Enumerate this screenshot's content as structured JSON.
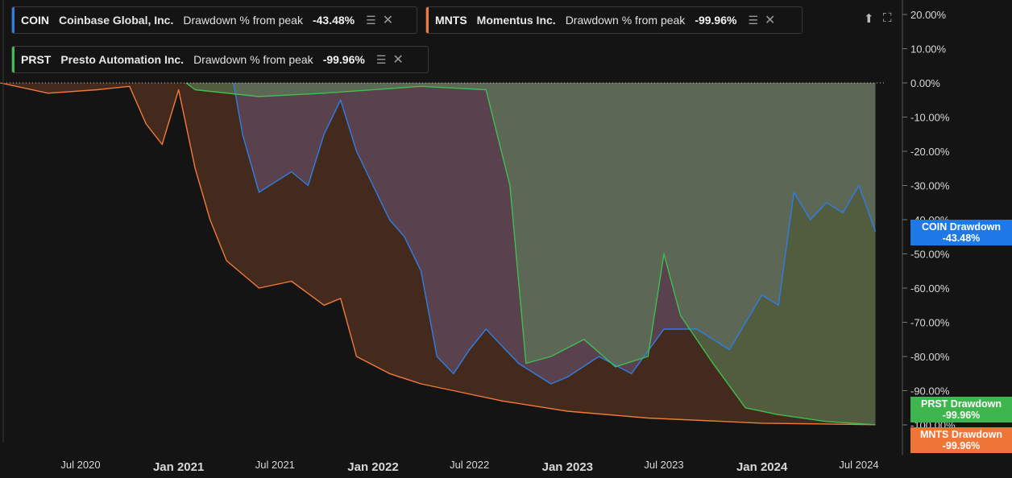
{
  "legend": [
    {
      "symbol": "COIN",
      "name": "Coinbase Global, Inc.",
      "metric": "Drawdown % from peak",
      "value": "-43.48%",
      "color": "#2f7ee6"
    },
    {
      "symbol": "MNTS",
      "name": "Momentus Inc.",
      "metric": "Drawdown % from peak",
      "value": "-99.96%",
      "color": "#f07a3a"
    },
    {
      "symbol": "PRST",
      "name": "Presto Automation Inc.",
      "metric": "Drawdown % from peak",
      "value": "-99.96%",
      "color": "#3fbf4f"
    }
  ],
  "tags": {
    "coin": {
      "title": "COIN Drawdown",
      "value": "-43.48%",
      "color": "#1e78e6"
    },
    "prst": {
      "title": "PRST Drawdown",
      "value": "-99.96%",
      "color": "#3fb54d"
    },
    "mnts": {
      "title": "MNTS Drawdown",
      "value": "-99.96%",
      "color": "#ef7438"
    }
  },
  "chart_data": {
    "type": "area",
    "y_ticks": [
      "20.00%",
      "10.00%",
      "0.00%",
      "-10.00%",
      "-20.00%",
      "-30.00%",
      "-40.00%",
      "-50.00%",
      "-60.00%",
      "-70.00%",
      "-80.00%",
      "-90.00%",
      "-100.00%"
    ],
    "ylim": [
      -100,
      20
    ],
    "x_ticks": [
      {
        "label": "Jul 2020",
        "date": "2020-07-01",
        "major": false
      },
      {
        "label": "Jan 2021",
        "date": "2021-01-01",
        "major": true
      },
      {
        "label": "Jul 2021",
        "date": "2021-07-01",
        "major": false
      },
      {
        "label": "Jan 2022",
        "date": "2022-01-01",
        "major": true
      },
      {
        "label": "Jul 2022",
        "date": "2022-07-01",
        "major": false
      },
      {
        "label": "Jan 2023",
        "date": "2023-01-01",
        "major": true
      },
      {
        "label": "Jul 2023",
        "date": "2023-07-01",
        "major": false
      },
      {
        "label": "Jan 2024",
        "date": "2024-01-01",
        "major": true
      },
      {
        "label": "Jul 2024",
        "date": "2024-07-01",
        "major": false
      }
    ],
    "series": [
      {
        "name": "MNTS",
        "color": "#f07a3a",
        "fill": "rgba(240,122,58,0.22)",
        "points": [
          [
            "2020-02-01",
            0
          ],
          [
            "2020-05-01",
            -3
          ],
          [
            "2020-08-01",
            -2
          ],
          [
            "2020-10-01",
            -1
          ],
          [
            "2020-11-01",
            -12
          ],
          [
            "2020-12-01",
            -18
          ],
          [
            "2021-01-01",
            -2
          ],
          [
            "2021-02-01",
            -25
          ],
          [
            "2021-03-01",
            -40
          ],
          [
            "2021-04-01",
            -52
          ],
          [
            "2021-06-01",
            -60
          ],
          [
            "2021-08-01",
            -58
          ],
          [
            "2021-10-01",
            -65
          ],
          [
            "2021-11-01",
            -63
          ],
          [
            "2021-12-01",
            -80
          ],
          [
            "2022-02-01",
            -85
          ],
          [
            "2022-04-01",
            -88
          ],
          [
            "2022-06-01",
            -90
          ],
          [
            "2022-09-01",
            -93
          ],
          [
            "2023-01-01",
            -96
          ],
          [
            "2023-06-01",
            -98
          ],
          [
            "2024-01-01",
            -99.5
          ],
          [
            "2024-08-01",
            -99.96
          ]
        ]
      },
      {
        "name": "COIN",
        "color": "#2f7ee6",
        "fill": "rgba(128,110,170,0.35)",
        "points": [
          [
            "2021-04-14",
            0
          ],
          [
            "2021-05-01",
            -15
          ],
          [
            "2021-06-01",
            -32
          ],
          [
            "2021-07-01",
            -29
          ],
          [
            "2021-08-01",
            -26
          ],
          [
            "2021-09-01",
            -30
          ],
          [
            "2021-10-01",
            -15
          ],
          [
            "2021-11-01",
            -5
          ],
          [
            "2021-12-01",
            -20
          ],
          [
            "2022-01-01",
            -30
          ],
          [
            "2022-02-01",
            -40
          ],
          [
            "2022-03-01",
            -45
          ],
          [
            "2022-04-01",
            -55
          ],
          [
            "2022-05-01",
            -80
          ],
          [
            "2022-06-01",
            -85
          ],
          [
            "2022-07-01",
            -78
          ],
          [
            "2022-08-01",
            -72
          ],
          [
            "2022-10-01",
            -82
          ],
          [
            "2022-12-01",
            -88
          ],
          [
            "2023-01-01",
            -86
          ],
          [
            "2023-03-01",
            -80
          ],
          [
            "2023-05-01",
            -85
          ],
          [
            "2023-07-01",
            -72
          ],
          [
            "2023-09-01",
            -72
          ],
          [
            "2023-11-01",
            -78
          ],
          [
            "2024-01-01",
            -62
          ],
          [
            "2024-02-01",
            -65
          ],
          [
            "2024-03-01",
            -32
          ],
          [
            "2024-04-01",
            -40
          ],
          [
            "2024-05-01",
            -35
          ],
          [
            "2024-06-01",
            -38
          ],
          [
            "2024-07-01",
            -30
          ],
          [
            "2024-08-01",
            -43.48
          ]
        ]
      },
      {
        "name": "PRST",
        "color": "#3fbf4f",
        "fill": "rgba(95,135,95,0.55)",
        "points": [
          [
            "2021-01-15",
            0
          ],
          [
            "2021-02-01",
            -2
          ],
          [
            "2021-06-01",
            -4
          ],
          [
            "2021-10-01",
            -3
          ],
          [
            "2022-04-01",
            -1
          ],
          [
            "2022-08-01",
            -2
          ],
          [
            "2022-09-15",
            -30
          ],
          [
            "2022-10-15",
            -82
          ],
          [
            "2022-12-01",
            -80
          ],
          [
            "2023-02-01",
            -75
          ],
          [
            "2023-04-01",
            -83
          ],
          [
            "2023-06-01",
            -80
          ],
          [
            "2023-07-01",
            -50
          ],
          [
            "2023-08-01",
            -68
          ],
          [
            "2023-10-01",
            -82
          ],
          [
            "2023-12-01",
            -95
          ],
          [
            "2024-02-01",
            -97
          ],
          [
            "2024-05-01",
            -99
          ],
          [
            "2024-08-01",
            -99.96
          ]
        ]
      }
    ]
  }
}
